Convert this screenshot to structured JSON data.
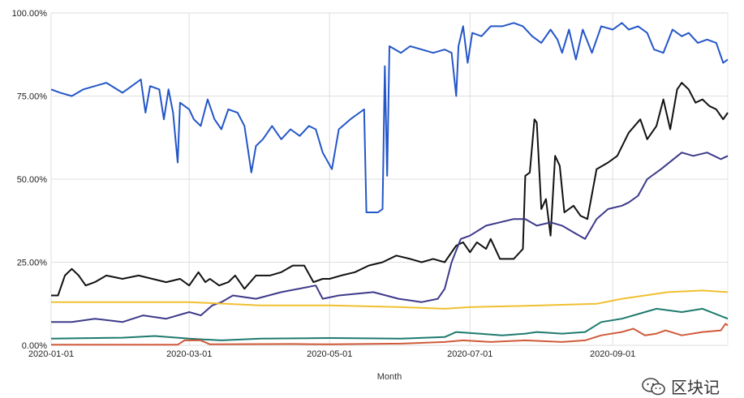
{
  "chart_data": {
    "type": "line",
    "xlabel": "Month",
    "ylabel": "",
    "x_range": [
      "2020-01-01",
      "2020-10-21"
    ],
    "ylim": [
      0,
      100
    ],
    "y_ticks": [
      0,
      25,
      50,
      75,
      100
    ],
    "y_tick_labels": [
      "0.00%",
      "25.00%",
      "50.00%",
      "75.00%",
      "100.00%"
    ],
    "x_ticks": [
      "2020-01-01",
      "2020-03-01",
      "2020-05-01",
      "2020-07-01",
      "2020-09-01"
    ],
    "grid": true,
    "legend": "none",
    "series": [
      {
        "color": "#2456c8",
        "points": [
          [
            "2020-01-01",
            77
          ],
          [
            "2020-01-05",
            76
          ],
          [
            "2020-01-10",
            75
          ],
          [
            "2020-01-15",
            77
          ],
          [
            "2020-01-20",
            78
          ],
          [
            "2020-01-25",
            79
          ],
          [
            "2020-02-01",
            76
          ],
          [
            "2020-02-05",
            78
          ],
          [
            "2020-02-09",
            80
          ],
          [
            "2020-02-11",
            70
          ],
          [
            "2020-02-13",
            78
          ],
          [
            "2020-02-17",
            77
          ],
          [
            "2020-02-19",
            68
          ],
          [
            "2020-02-21",
            77
          ],
          [
            "2020-02-23",
            70
          ],
          [
            "2020-02-25",
            55
          ],
          [
            "2020-02-26",
            73
          ],
          [
            "2020-03-01",
            71
          ],
          [
            "2020-03-03",
            68
          ],
          [
            "2020-03-06",
            66
          ],
          [
            "2020-03-09",
            74
          ],
          [
            "2020-03-12",
            68
          ],
          [
            "2020-03-15",
            65
          ],
          [
            "2020-03-18",
            71
          ],
          [
            "2020-03-22",
            70
          ],
          [
            "2020-03-25",
            66
          ],
          [
            "2020-03-28",
            52
          ],
          [
            "2020-03-30",
            60
          ],
          [
            "2020-04-02",
            62
          ],
          [
            "2020-04-06",
            66
          ],
          [
            "2020-04-10",
            62
          ],
          [
            "2020-04-14",
            65
          ],
          [
            "2020-04-18",
            63
          ],
          [
            "2020-04-22",
            66
          ],
          [
            "2020-04-25",
            65
          ],
          [
            "2020-04-28",
            58
          ],
          [
            "2020-05-02",
            53
          ],
          [
            "2020-05-05",
            65
          ],
          [
            "2020-05-10",
            68
          ],
          [
            "2020-05-14",
            70
          ],
          [
            "2020-05-16",
            71
          ],
          [
            "2020-05-17",
            40
          ],
          [
            "2020-05-22",
            40
          ],
          [
            "2020-05-24",
            41
          ],
          [
            "2020-05-25",
            84
          ],
          [
            "2020-05-26",
            51
          ],
          [
            "2020-05-27",
            90
          ],
          [
            "2020-06-01",
            88
          ],
          [
            "2020-06-05",
            90
          ],
          [
            "2020-06-10",
            89
          ],
          [
            "2020-06-15",
            88
          ],
          [
            "2020-06-20",
            89
          ],
          [
            "2020-06-23",
            88
          ],
          [
            "2020-06-25",
            75
          ],
          [
            "2020-06-26",
            90
          ],
          [
            "2020-06-28",
            96
          ],
          [
            "2020-06-30",
            85
          ],
          [
            "2020-07-02",
            94
          ],
          [
            "2020-07-06",
            93
          ],
          [
            "2020-07-10",
            96
          ],
          [
            "2020-07-15",
            96
          ],
          [
            "2020-07-20",
            97
          ],
          [
            "2020-07-24",
            96
          ],
          [
            "2020-07-28",
            93
          ],
          [
            "2020-08-01",
            91
          ],
          [
            "2020-08-05",
            95
          ],
          [
            "2020-08-08",
            92
          ],
          [
            "2020-08-10",
            88
          ],
          [
            "2020-08-13",
            95
          ],
          [
            "2020-08-16",
            86
          ],
          [
            "2020-08-19",
            95
          ],
          [
            "2020-08-23",
            88
          ],
          [
            "2020-08-27",
            96
          ],
          [
            "2020-09-01",
            95
          ],
          [
            "2020-09-05",
            97
          ],
          [
            "2020-09-08",
            95
          ],
          [
            "2020-09-12",
            96
          ],
          [
            "2020-09-16",
            94
          ],
          [
            "2020-09-19",
            89
          ],
          [
            "2020-09-23",
            88
          ],
          [
            "2020-09-27",
            95
          ],
          [
            "2020-10-01",
            93
          ],
          [
            "2020-10-04",
            94
          ],
          [
            "2020-10-08",
            91
          ],
          [
            "2020-10-12",
            92
          ],
          [
            "2020-10-16",
            91
          ],
          [
            "2020-10-19",
            85
          ],
          [
            "2020-10-21",
            86
          ]
        ]
      },
      {
        "color": "#111111",
        "points": [
          [
            "2020-01-01",
            15
          ],
          [
            "2020-01-04",
            15
          ],
          [
            "2020-01-07",
            21
          ],
          [
            "2020-01-10",
            23
          ],
          [
            "2020-01-13",
            21
          ],
          [
            "2020-01-16",
            18
          ],
          [
            "2020-01-20",
            19
          ],
          [
            "2020-01-25",
            21
          ],
          [
            "2020-02-01",
            20
          ],
          [
            "2020-02-08",
            21
          ],
          [
            "2020-02-14",
            20
          ],
          [
            "2020-02-20",
            19
          ],
          [
            "2020-02-26",
            20
          ],
          [
            "2020-03-01",
            18
          ],
          [
            "2020-03-05",
            22
          ],
          [
            "2020-03-08",
            19
          ],
          [
            "2020-03-10",
            20
          ],
          [
            "2020-03-14",
            18
          ],
          [
            "2020-03-18",
            19
          ],
          [
            "2020-03-21",
            21
          ],
          [
            "2020-03-25",
            17
          ],
          [
            "2020-03-30",
            21
          ],
          [
            "2020-04-05",
            21
          ],
          [
            "2020-04-10",
            22
          ],
          [
            "2020-04-15",
            24
          ],
          [
            "2020-04-20",
            24
          ],
          [
            "2020-04-24",
            19
          ],
          [
            "2020-04-28",
            20
          ],
          [
            "2020-05-01",
            20
          ],
          [
            "2020-05-06",
            21
          ],
          [
            "2020-05-12",
            22
          ],
          [
            "2020-05-18",
            24
          ],
          [
            "2020-05-24",
            25
          ],
          [
            "2020-05-30",
            27
          ],
          [
            "2020-06-05",
            26
          ],
          [
            "2020-06-10",
            25
          ],
          [
            "2020-06-15",
            26
          ],
          [
            "2020-06-20",
            25
          ],
          [
            "2020-06-25",
            30
          ],
          [
            "2020-06-28",
            31
          ],
          [
            "2020-07-01",
            28
          ],
          [
            "2020-07-04",
            31
          ],
          [
            "2020-07-08",
            29
          ],
          [
            "2020-07-10",
            32
          ],
          [
            "2020-07-14",
            26
          ],
          [
            "2020-07-20",
            26
          ],
          [
            "2020-07-24",
            29
          ],
          [
            "2020-07-25",
            51
          ],
          [
            "2020-07-27",
            52
          ],
          [
            "2020-07-29",
            68
          ],
          [
            "2020-07-30",
            67
          ],
          [
            "2020-08-01",
            41
          ],
          [
            "2020-08-03",
            44
          ],
          [
            "2020-08-05",
            33
          ],
          [
            "2020-08-07",
            57
          ],
          [
            "2020-08-09",
            54
          ],
          [
            "2020-08-11",
            40
          ],
          [
            "2020-08-15",
            42
          ],
          [
            "2020-08-18",
            39
          ],
          [
            "2020-08-21",
            38
          ],
          [
            "2020-08-25",
            53
          ],
          [
            "2020-08-30",
            55
          ],
          [
            "2020-09-03",
            57
          ],
          [
            "2020-09-08",
            64
          ],
          [
            "2020-09-13",
            68
          ],
          [
            "2020-09-16",
            62
          ],
          [
            "2020-09-20",
            66
          ],
          [
            "2020-09-23",
            74
          ],
          [
            "2020-09-26",
            65
          ],
          [
            "2020-09-29",
            77
          ],
          [
            "2020-10-01",
            79
          ],
          [
            "2020-10-04",
            77
          ],
          [
            "2020-10-07",
            73
          ],
          [
            "2020-10-10",
            74
          ],
          [
            "2020-10-13",
            72
          ],
          [
            "2020-10-16",
            71
          ],
          [
            "2020-10-19",
            68
          ],
          [
            "2020-10-21",
            70
          ]
        ]
      },
      {
        "color": "#3d3a8a",
        "points": [
          [
            "2020-01-01",
            7
          ],
          [
            "2020-01-10",
            7
          ],
          [
            "2020-01-20",
            8
          ],
          [
            "2020-02-01",
            7
          ],
          [
            "2020-02-10",
            9
          ],
          [
            "2020-02-20",
            8
          ],
          [
            "2020-03-01",
            10
          ],
          [
            "2020-03-06",
            9
          ],
          [
            "2020-03-11",
            12
          ],
          [
            "2020-03-15",
            13
          ],
          [
            "2020-03-20",
            15
          ],
          [
            "2020-03-30",
            14
          ],
          [
            "2020-04-10",
            16
          ],
          [
            "2020-04-25",
            18
          ],
          [
            "2020-04-28",
            14
          ],
          [
            "2020-05-05",
            15
          ],
          [
            "2020-05-20",
            16
          ],
          [
            "2020-05-31",
            14
          ],
          [
            "2020-06-10",
            13
          ],
          [
            "2020-06-17",
            14
          ],
          [
            "2020-06-20",
            17
          ],
          [
            "2020-06-23",
            25
          ],
          [
            "2020-06-27",
            32
          ],
          [
            "2020-07-01",
            33
          ],
          [
            "2020-07-08",
            36
          ],
          [
            "2020-07-20",
            38
          ],
          [
            "2020-07-25",
            38
          ],
          [
            "2020-07-30",
            36
          ],
          [
            "2020-08-05",
            37
          ],
          [
            "2020-08-10",
            36
          ],
          [
            "2020-08-15",
            34
          ],
          [
            "2020-08-20",
            32
          ],
          [
            "2020-08-25",
            38
          ],
          [
            "2020-08-30",
            41
          ],
          [
            "2020-09-05",
            42
          ],
          [
            "2020-09-08",
            43
          ],
          [
            "2020-09-12",
            45
          ],
          [
            "2020-09-16",
            50
          ],
          [
            "2020-09-22",
            53
          ],
          [
            "2020-10-01",
            58
          ],
          [
            "2020-10-06",
            57
          ],
          [
            "2020-10-12",
            58
          ],
          [
            "2020-10-18",
            56
          ],
          [
            "2020-10-21",
            57
          ]
        ]
      },
      {
        "color": "#f0c030",
        "points": [
          [
            "2020-01-01",
            13
          ],
          [
            "2020-02-01",
            13
          ],
          [
            "2020-03-01",
            13
          ],
          [
            "2020-04-01",
            12
          ],
          [
            "2020-05-01",
            12
          ],
          [
            "2020-06-01",
            11.5
          ],
          [
            "2020-06-20",
            11
          ],
          [
            "2020-07-01",
            11.5
          ],
          [
            "2020-08-01",
            12
          ],
          [
            "2020-08-25",
            12.5
          ],
          [
            "2020-09-05",
            14
          ],
          [
            "2020-09-15",
            15
          ],
          [
            "2020-09-25",
            16
          ],
          [
            "2020-10-10",
            16.5
          ],
          [
            "2020-10-21",
            16
          ]
        ]
      },
      {
        "color": "#1e7a6e",
        "points": [
          [
            "2020-01-01",
            2
          ],
          [
            "2020-02-01",
            2.3
          ],
          [
            "2020-02-15",
            2.8
          ],
          [
            "2020-03-01",
            2
          ],
          [
            "2020-03-15",
            1.5
          ],
          [
            "2020-04-01",
            2
          ],
          [
            "2020-05-01",
            2.2
          ],
          [
            "2020-06-01",
            2
          ],
          [
            "2020-06-20",
            2.5
          ],
          [
            "2020-06-25",
            4
          ],
          [
            "2020-07-05",
            3.5
          ],
          [
            "2020-07-15",
            3
          ],
          [
            "2020-07-25",
            3.5
          ],
          [
            "2020-07-30",
            4
          ],
          [
            "2020-08-10",
            3.5
          ],
          [
            "2020-08-20",
            4
          ],
          [
            "2020-08-27",
            7
          ],
          [
            "2020-09-05",
            8
          ],
          [
            "2020-09-15",
            10
          ],
          [
            "2020-09-20",
            11
          ],
          [
            "2020-10-01",
            10
          ],
          [
            "2020-10-10",
            11
          ],
          [
            "2020-10-21",
            8
          ]
        ]
      },
      {
        "color": "#d05a3a",
        "points": [
          [
            "2020-01-01",
            0.2
          ],
          [
            "2020-02-25",
            0.2
          ],
          [
            "2020-02-28",
            1.5
          ],
          [
            "2020-03-06",
            1.5
          ],
          [
            "2020-03-10",
            0.3
          ],
          [
            "2020-04-15",
            0.4
          ],
          [
            "2020-05-01",
            0.3
          ],
          [
            "2020-06-01",
            0.5
          ],
          [
            "2020-06-20",
            1
          ],
          [
            "2020-06-28",
            1.5
          ],
          [
            "2020-07-10",
            1
          ],
          [
            "2020-07-25",
            1.5
          ],
          [
            "2020-08-10",
            1
          ],
          [
            "2020-08-20",
            1.5
          ],
          [
            "2020-08-27",
            3
          ],
          [
            "2020-09-05",
            4
          ],
          [
            "2020-09-10",
            5
          ],
          [
            "2020-09-15",
            3
          ],
          [
            "2020-09-20",
            3.5
          ],
          [
            "2020-09-24",
            4.5
          ],
          [
            "2020-10-01",
            3
          ],
          [
            "2020-10-10",
            4
          ],
          [
            "2020-10-18",
            4.5
          ],
          [
            "2020-10-20",
            6.5
          ],
          [
            "2020-10-21",
            6
          ]
        ]
      }
    ]
  },
  "watermark": {
    "text": "区块记"
  }
}
